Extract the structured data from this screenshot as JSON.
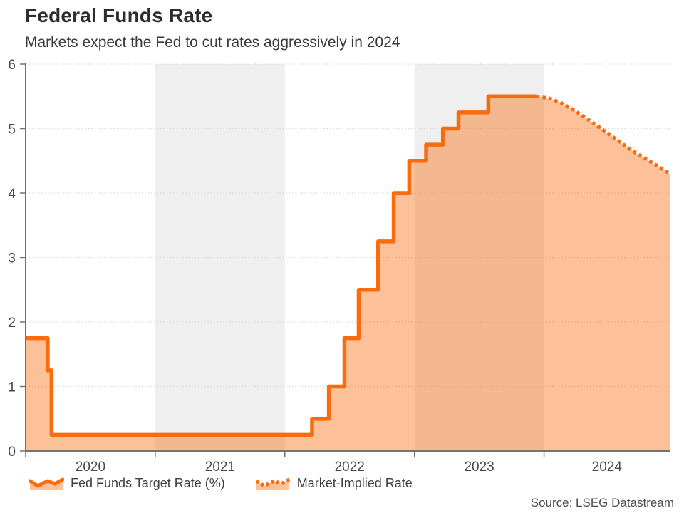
{
  "chart_data": {
    "type": "area",
    "title": "Federal Funds Rate",
    "subtitle": "Markets expect the Fed to cut rates aggressively in 2024",
    "source": "Source: LSEG Datastream",
    "xlabel": "",
    "ylabel": "",
    "x_domain": [
      2020,
      2024.97
    ],
    "ylim": [
      0,
      6
    ],
    "y_ticks": [
      0,
      1,
      2,
      3,
      4,
      5,
      6
    ],
    "x_year_labels": [
      "2020",
      "2021",
      "2022",
      "2023",
      "2024"
    ],
    "x_tick_years": [
      2020,
      2021,
      2022,
      2023,
      2024
    ],
    "shaded_year_bands": [
      2021,
      2023
    ],
    "grid": "dotted-horizontal",
    "legend_position": "bottom-left",
    "series": [
      {
        "name": "Fed Funds Target Rate (%)",
        "style": "solid-step",
        "points": [
          [
            2020.0,
            1.75
          ],
          [
            2020.17,
            1.25
          ],
          [
            2020.2,
            0.25
          ],
          [
            2022.21,
            0.5
          ],
          [
            2022.34,
            1.0
          ],
          [
            2022.46,
            1.75
          ],
          [
            2022.57,
            2.5
          ],
          [
            2022.72,
            3.25
          ],
          [
            2022.84,
            4.0
          ],
          [
            2022.96,
            4.5
          ],
          [
            2023.09,
            4.75
          ],
          [
            2023.22,
            5.0
          ],
          [
            2023.34,
            5.25
          ],
          [
            2023.57,
            5.5
          ],
          [
            2023.94,
            5.5
          ]
        ]
      },
      {
        "name": "Market-Implied Rate",
        "style": "dotted",
        "points": [
          [
            2023.94,
            5.5
          ],
          [
            2024.04,
            5.47
          ],
          [
            2024.13,
            5.4
          ],
          [
            2024.22,
            5.3
          ],
          [
            2024.31,
            5.18
          ],
          [
            2024.4,
            5.06
          ],
          [
            2024.49,
            4.93
          ],
          [
            2024.58,
            4.8
          ],
          [
            2024.67,
            4.67
          ],
          [
            2024.76,
            4.56
          ],
          [
            2024.86,
            4.44
          ],
          [
            2024.97,
            4.3
          ]
        ]
      }
    ],
    "colors": {
      "line": "#f96b0d",
      "fill": "rgba(249,107,13,0.42)",
      "band": "#efefef",
      "grid": "#d9d9d9",
      "axis": "#737373",
      "axis_text": "#4a4a4a"
    }
  }
}
